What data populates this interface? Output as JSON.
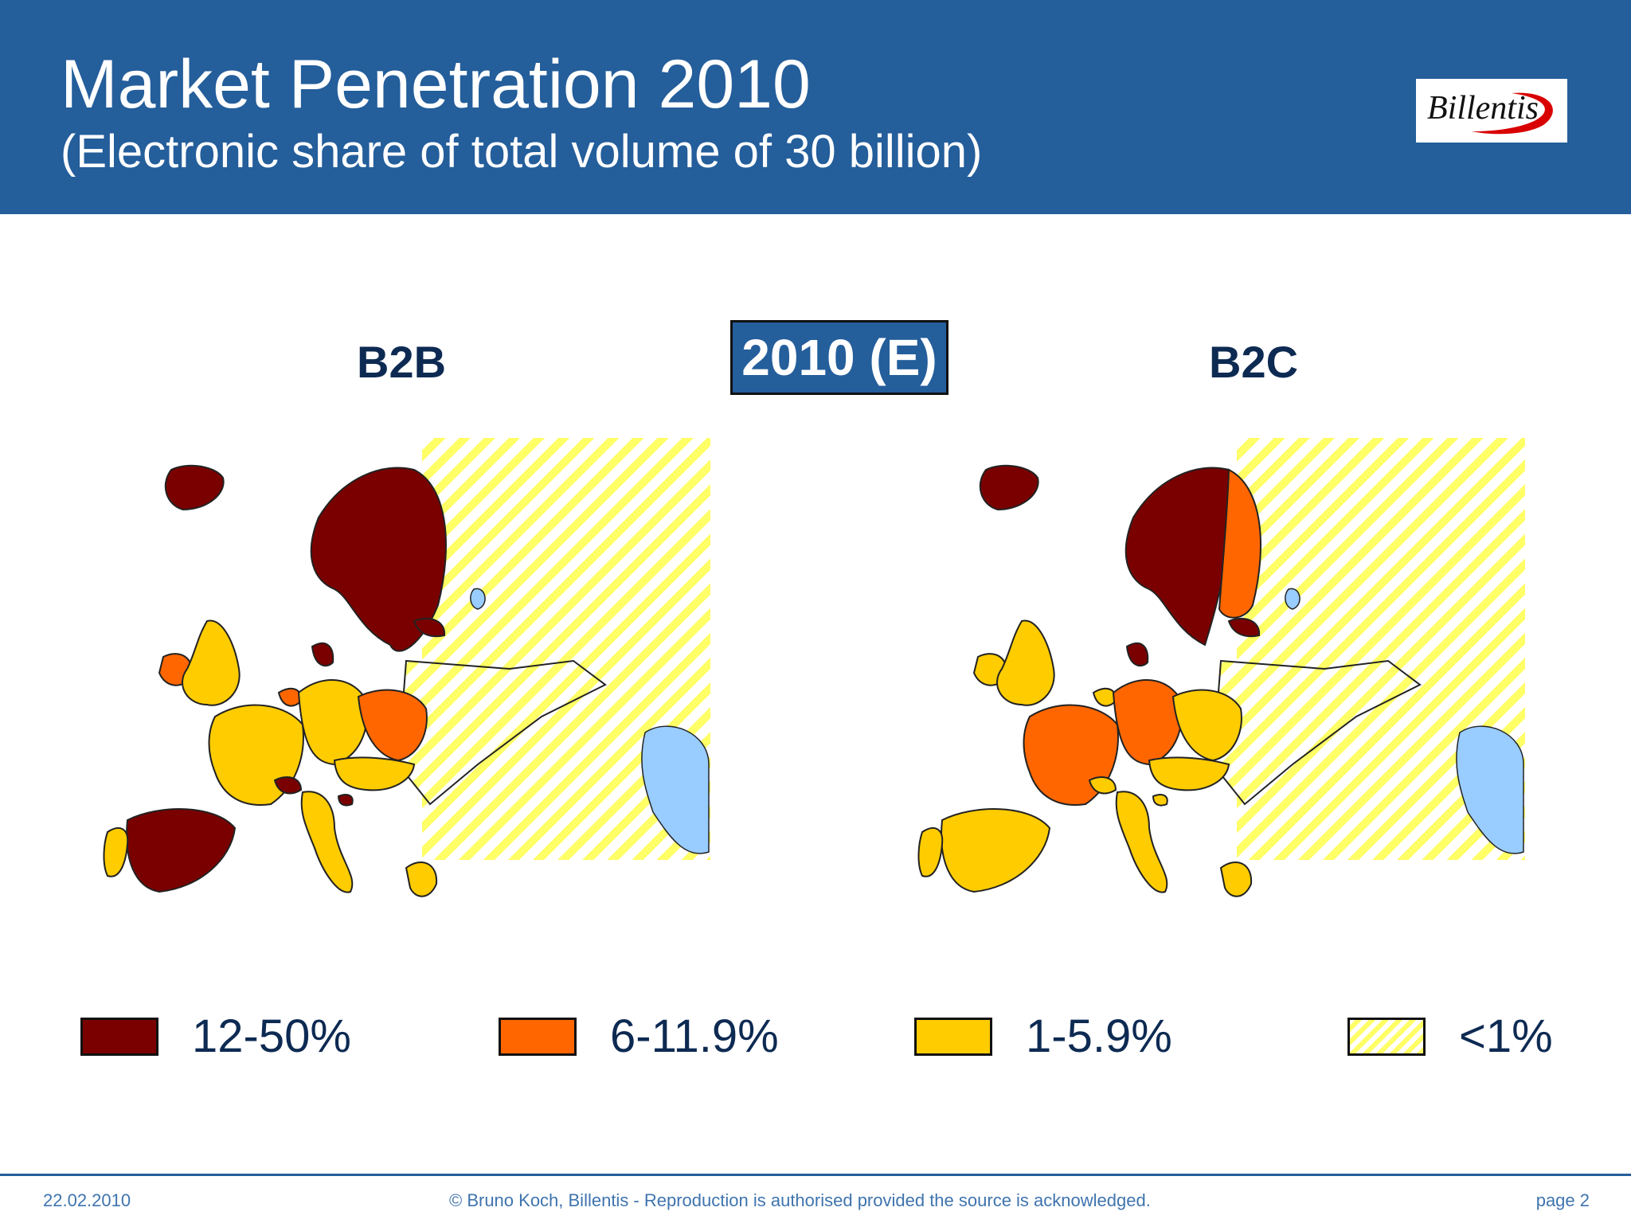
{
  "header": {
    "title": "Market Penetration 2010",
    "subtitle": "(Electronic share of total volume of 30 billion)",
    "logo_text": "Billentis"
  },
  "maps": {
    "left_label": "B2B",
    "center_label": "2010 (E)",
    "right_label": "B2C"
  },
  "colors": {
    "band_12_50": "#7a0000",
    "band_6_11": "#ff6600",
    "band_1_5": "#ffcc00",
    "band_lt1": "#ffff66",
    "water": "#99ccff",
    "header": "#245e9b"
  },
  "b2b_regions": {
    "iceland": "12-50%",
    "ireland": "6-11.9%",
    "uk": "1-5.9%",
    "norway": "12-50%",
    "sweden": "12-50%",
    "finland": "12-50%",
    "denmark": "12-50%",
    "estonia": "12-50%",
    "netherlands": "6-11.9%",
    "belgium": "1-5.9%",
    "france": "1-5.9%",
    "germany": "1-5.9%",
    "poland": "6-11.9%",
    "spain": "12-50%",
    "portugal": "1-5.9%",
    "switzerland": "12-50%",
    "italy": "1-5.9%",
    "austria": "1-5.9%",
    "czechia": "1-5.9%",
    "hungary": "1-5.9%",
    "slovenia": "12-50%",
    "greece": "1-5.9%",
    "eastern_europe": "<1%"
  },
  "b2c_regions": {
    "iceland": "12-50%",
    "ireland": "1-5.9%",
    "uk": "1-5.9%",
    "norway": "12-50%",
    "sweden": "12-50%",
    "finland": "6-11.9%",
    "denmark": "12-50%",
    "estonia": "12-50%",
    "netherlands": "1-5.9%",
    "belgium": "1-5.9%",
    "france": "6-11.9%",
    "germany": "6-11.9%",
    "poland": "1-5.9%",
    "spain": "1-5.9%",
    "portugal": "1-5.9%",
    "switzerland": "1-5.9%",
    "italy": "1-5.9%",
    "austria": "1-5.9%",
    "czechia": "1-5.9%",
    "hungary": "1-5.9%",
    "slovenia": "1-5.9%",
    "greece": "1-5.9%",
    "eastern_europe": "<1%"
  },
  "legend": [
    {
      "label": "12-50%",
      "color": "#7a0000"
    },
    {
      "label": "6-11.9%",
      "color": "#ff6600"
    },
    {
      "label": "1-5.9%",
      "color": "#ffcc00"
    },
    {
      "label": "<1%",
      "color": "hatch"
    }
  ],
  "footer": {
    "date": "22.02.2010",
    "copyright": "© Bruno Koch, Billentis  -  Reproduction is authorised provided the source is acknowledged.",
    "page": "page 2"
  }
}
